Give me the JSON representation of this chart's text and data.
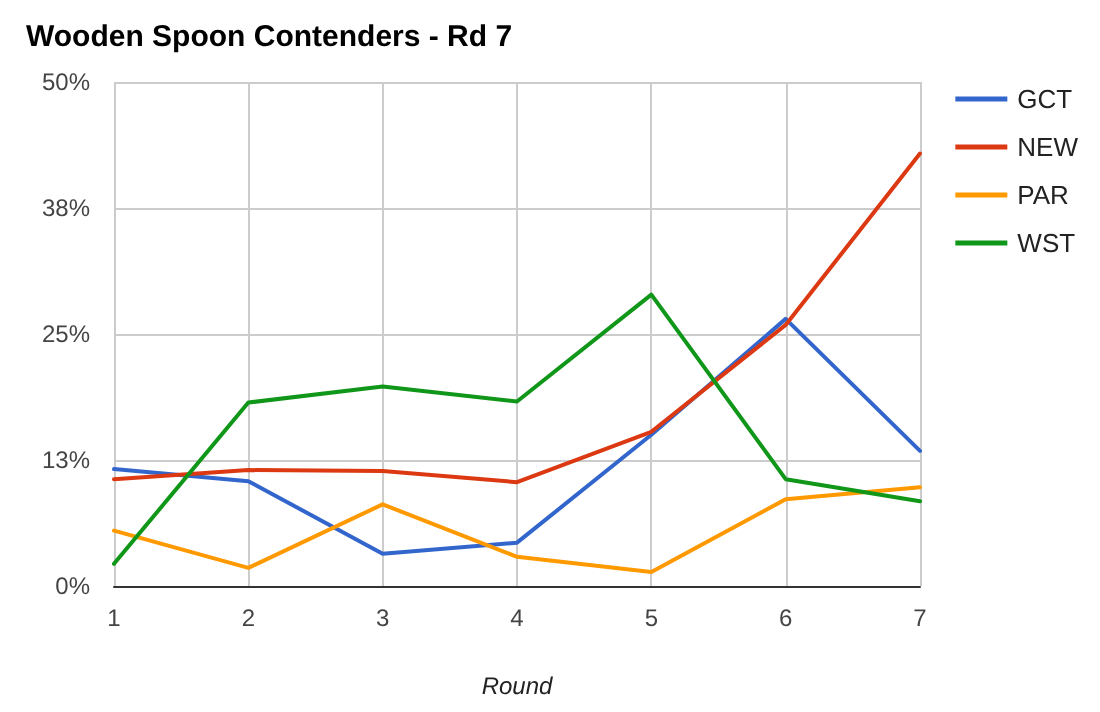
{
  "chart_data": {
    "type": "line",
    "title": "Wooden Spoon Contenders - Rd 7",
    "xlabel": "Round",
    "x": [
      1,
      2,
      3,
      4,
      5,
      6,
      7
    ],
    "series": [
      {
        "name": "GCT",
        "color": "#3366cc",
        "values": [
          11.6,
          10.4,
          3.2,
          4.3,
          15.0,
          26.5,
          13.4
        ]
      },
      {
        "name": "NEW",
        "color": "#dc3912",
        "values": [
          10.6,
          11.5,
          11.4,
          10.3,
          15.3,
          25.9,
          42.9
        ]
      },
      {
        "name": "PAR",
        "color": "#ff9900",
        "values": [
          5.5,
          1.8,
          8.1,
          2.9,
          1.4,
          8.6,
          9.8
        ]
      },
      {
        "name": "WST",
        "color": "#109618",
        "values": [
          2.2,
          18.2,
          19.8,
          18.3,
          28.9,
          10.6,
          8.4
        ]
      }
    ],
    "xlim": [
      1,
      7
    ],
    "xticks": [
      1,
      2,
      3,
      4,
      5,
      6,
      7
    ],
    "ylim": [
      0,
      50
    ],
    "yticks": [
      {
        "value": 0,
        "label": "0%"
      },
      {
        "value": 12.5,
        "label": "13%"
      },
      {
        "value": 25,
        "label": "25%"
      },
      {
        "value": 37.5,
        "label": "38%"
      },
      {
        "value": 50,
        "label": "50%"
      }
    ],
    "grid": true,
    "legend": "top right",
    "marker": "none",
    "line_style": "solid"
  }
}
